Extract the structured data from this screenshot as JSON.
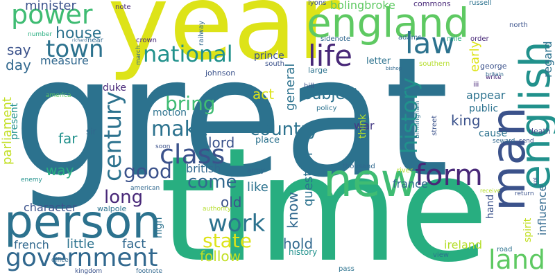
{
  "words": [
    {
      "text": "great",
      "color": "#2c728e"
    },
    {
      "text": "time",
      "color": "#28ae80"
    },
    {
      "text": "year",
      "color": "#dde318"
    },
    {
      "text": "england",
      "color": "#5ec962"
    },
    {
      "text": "new",
      "color": "#3fbc73"
    },
    {
      "text": "man",
      "color": "#3b528b"
    },
    {
      "text": "english",
      "color": "#21918c"
    },
    {
      "text": "person",
      "color": "#2c728e"
    },
    {
      "text": "government",
      "color": "#31688e"
    },
    {
      "text": "form",
      "color": "#482878"
    },
    {
      "text": "life",
      "color": "#482878"
    },
    {
      "text": "law",
      "color": "#2c728e"
    },
    {
      "text": "land",
      "color": "#5ec962"
    },
    {
      "text": "power",
      "color": "#3fbc73"
    },
    {
      "text": "town",
      "color": "#2c728e"
    },
    {
      "text": "national",
      "color": "#21918c"
    },
    {
      "text": "class",
      "color": "#3b528b"
    },
    {
      "text": "make",
      "color": "#2c728e"
    },
    {
      "text": "country",
      "color": "#2c728e"
    },
    {
      "text": "century",
      "color": "#2c728e"
    },
    {
      "text": "history",
      "color": "#21918c"
    },
    {
      "text": "work",
      "color": "#2c728e"
    },
    {
      "text": "state",
      "color": "#dde318"
    },
    {
      "text": "good",
      "color": "#3b528b"
    },
    {
      "text": "long",
      "color": "#482878"
    },
    {
      "text": "come",
      "color": "#31688e"
    },
    {
      "text": "bring",
      "color": "#3fbc73"
    },
    {
      "text": "house",
      "color": "#2c728e"
    },
    {
      "text": "minister",
      "color": "#3b528b"
    },
    {
      "text": "bolingbroke",
      "color": "#5ec962"
    },
    {
      "text": "say",
      "color": "#3b528b"
    },
    {
      "text": "day",
      "color": "#31688e"
    },
    {
      "text": "measure",
      "color": "#31688e"
    },
    {
      "text": "parliament",
      "color": "#c2df23"
    },
    {
      "text": "present",
      "color": "#21918c"
    },
    {
      "text": "far",
      "color": "#21918c"
    },
    {
      "text": "way",
      "color": "#28ae80"
    },
    {
      "text": "character",
      "color": "#3b528b"
    },
    {
      "text": "french",
      "color": "#31688e"
    },
    {
      "text": "little",
      "color": "#2c728e"
    },
    {
      "text": "fact",
      "color": "#31688e"
    },
    {
      "text": "follow",
      "color": "#c2df23"
    },
    {
      "text": "hold",
      "color": "#31688e"
    },
    {
      "text": "old",
      "color": "#3b528b"
    },
    {
      "text": "like",
      "color": "#2c728e"
    },
    {
      "text": "british",
      "color": "#31688e"
    },
    {
      "text": "lord",
      "color": "#3b528b"
    },
    {
      "text": "act",
      "color": "#dde318"
    },
    {
      "text": "subject",
      "color": "#2c728e"
    },
    {
      "text": "general",
      "color": "#2c728e"
    },
    {
      "text": "know",
      "color": "#31688e"
    },
    {
      "text": "question",
      "color": "#2c728e"
    },
    {
      "text": "war",
      "color": "#443983"
    },
    {
      "text": "france",
      "color": "#31688e"
    },
    {
      "text": "king",
      "color": "#3b528b"
    },
    {
      "text": "public",
      "color": "#2c728e"
    },
    {
      "text": "appear",
      "color": "#2c728e"
    },
    {
      "text": "early",
      "color": "#dde318"
    },
    {
      "text": "regard",
      "color": "#2c728e"
    },
    {
      "text": "influence",
      "color": "#31688e"
    },
    {
      "text": "spirit",
      "color": "#c2df23"
    },
    {
      "text": "hand",
      "color": "#3b528b"
    },
    {
      "text": "cause",
      "color": "#2c728e"
    },
    {
      "text": "ireland",
      "color": "#b5de2b"
    },
    {
      "text": "death",
      "color": "#3e4989"
    },
    {
      "text": "prince",
      "color": "#3b528b"
    },
    {
      "text": "letter",
      "color": "#2c728e"
    },
    {
      "text": "high",
      "color": "#2c728e"
    },
    {
      "text": "motion",
      "color": "#2c728e"
    },
    {
      "text": "duke",
      "color": "#482878"
    },
    {
      "text": "sir",
      "color": "#31688e"
    },
    {
      "text": "place",
      "color": "#2c728e"
    },
    {
      "text": "think",
      "color": "#b5de2b"
    },
    {
      "text": "history",
      "color": "#21918c"
    },
    {
      "text": "johnson",
      "color": "#3b528b"
    },
    {
      "text": "london",
      "color": "#31688e"
    },
    {
      "text": "lyons",
      "color": "#3b528b"
    },
    {
      "text": "commons",
      "color": "#482878"
    },
    {
      "text": "russell",
      "color": "#2c728e"
    },
    {
      "text": "north",
      "color": "#3b528b"
    },
    {
      "text": "adams",
      "color": "#31688e"
    },
    {
      "text": "order",
      "color": "#482878"
    },
    {
      "text": "mile",
      "color": "#28ae80"
    },
    {
      "text": "sidenote",
      "color": "#31688e"
    },
    {
      "text": "railway",
      "color": "#31688e"
    },
    {
      "text": "crown",
      "color": "#482878"
    },
    {
      "text": "note",
      "color": "#482878"
    },
    {
      "text": "number",
      "color": "#28ae80"
    },
    {
      "text": "near",
      "color": "#31688e"
    },
    {
      "text": "march",
      "color": "#31688e"
    },
    {
      "text": "south",
      "color": "#3b528b"
    },
    {
      "text": "large",
      "color": "#2c728e"
    },
    {
      "text": "southern",
      "color": "#b5de2b"
    },
    {
      "text": "george",
      "color": "#3b528b"
    },
    {
      "text": "iii",
      "color": "#482878"
    },
    {
      "text": "hill",
      "color": "#3b528b"
    },
    {
      "text": "policy",
      "color": "#2c728e"
    },
    {
      "text": "birmingham",
      "color": "#2c728e"
    },
    {
      "text": "street",
      "color": "#3b528b"
    },
    {
      "text": "america",
      "color": "#5ec962"
    },
    {
      "text": "soon",
      "color": "#3b528b"
    },
    {
      "text": "army",
      "color": "#31688e"
    },
    {
      "text": "thousand",
      "color": "#31688e"
    },
    {
      "text": "river",
      "color": "#b5de2b"
    },
    {
      "text": "seward",
      "color": "#31688e"
    },
    {
      "text": "send",
      "color": "#3b528b"
    },
    {
      "text": "american",
      "color": "#31688e"
    },
    {
      "text": "walpole",
      "color": "#2c728e"
    },
    {
      "text": "authority",
      "color": "#b5de2b"
    },
    {
      "text": "officer",
      "color": "#31688e"
    },
    {
      "text": "kingdom",
      "color": "#3b528b"
    },
    {
      "text": "footnote",
      "color": "#31688e"
    },
    {
      "text": "pass",
      "color": "#2c728e"
    },
    {
      "text": "view",
      "color": "#2c728e"
    },
    {
      "text": "road",
      "color": "#2c728e"
    },
    {
      "text": "return",
      "color": "#3b528b"
    },
    {
      "text": "receive",
      "color": "#b5de2b"
    },
    {
      "text": "vol",
      "color": "#3b528b"
    },
    {
      "text": "write",
      "color": "#482878"
    },
    {
      "text": "britain",
      "color": "#31688e"
    },
    {
      "text": "bishop",
      "color": "#31688e"
    },
    {
      "text": "enemy",
      "color": "#21918c"
    },
    {
      "text": "richard",
      "color": "#31688e"
    }
  ]
}
